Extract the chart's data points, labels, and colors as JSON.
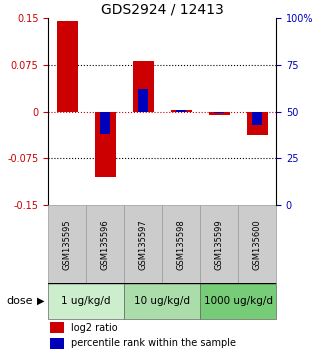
{
  "title": "GDS2924 / 12413",
  "samples": [
    "GSM135595",
    "GSM135596",
    "GSM135597",
    "GSM135598",
    "GSM135599",
    "GSM135600"
  ],
  "log2_ratio": [
    0.145,
    -0.105,
    0.08,
    0.002,
    -0.005,
    -0.038
  ],
  "percentile_rank_pct": [
    50,
    38,
    62,
    51,
    49,
    43
  ],
  "ylim": [
    -0.15,
    0.15
  ],
  "yticks_left": [
    -0.15,
    -0.075,
    0,
    0.075,
    0.15
  ],
  "yticks_right": [
    0,
    25,
    50,
    75,
    100
  ],
  "dose_groups": [
    {
      "label": "1 ug/kg/d",
      "color": "#cceecc",
      "start": 0,
      "end": 2
    },
    {
      "label": "10 ug/kg/d",
      "color": "#aaddaa",
      "start": 2,
      "end": 4
    },
    {
      "label": "1000 ug/kg/d",
      "color": "#77cc77",
      "start": 4,
      "end": 6
    }
  ],
  "bar_width": 0.55,
  "blue_bar_width": 0.25,
  "red_color": "#cc0000",
  "blue_color": "#0000bb",
  "sample_box_color": "#cccccc",
  "sample_box_edge": "#999999",
  "title_fontsize": 10,
  "tick_fontsize": 7,
  "dose_fontsize": 7.5,
  "legend_fontsize": 7
}
